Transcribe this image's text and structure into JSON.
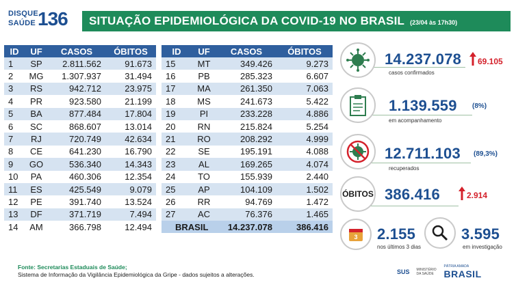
{
  "header": {
    "logo_line1": "DISQUE",
    "logo_line2": "SAÚDE",
    "logo_number": "136",
    "title": "SITUAÇÃO EPIDEMIOLÓGICA DA COVID-19 NO BRASIL",
    "date": "(23/04 às 17h30)"
  },
  "table": {
    "columns": [
      "ID",
      "UF",
      "CASOS",
      "ÓBITOS"
    ],
    "left_rows": [
      [
        "1",
        "SP",
        "2.811.562",
        "91.673"
      ],
      [
        "2",
        "MG",
        "1.307.937",
        "31.494"
      ],
      [
        "3",
        "RS",
        "942.712",
        "23.975"
      ],
      [
        "4",
        "PR",
        "923.580",
        "21.199"
      ],
      [
        "5",
        "BA",
        "877.484",
        "17.804"
      ],
      [
        "6",
        "SC",
        "868.607",
        "13.014"
      ],
      [
        "7",
        "RJ",
        "720.749",
        "42.634"
      ],
      [
        "8",
        "CE",
        "641.230",
        "16.790"
      ],
      [
        "9",
        "GO",
        "536.340",
        "14.343"
      ],
      [
        "10",
        "PA",
        "460.306",
        "12.354"
      ],
      [
        "11",
        "ES",
        "425.549",
        "9.079"
      ],
      [
        "12",
        "PE",
        "391.740",
        "13.524"
      ],
      [
        "13",
        "DF",
        "371.719",
        "7.494"
      ],
      [
        "14",
        "AM",
        "366.798",
        "12.494"
      ]
    ],
    "right_rows": [
      [
        "15",
        "MT",
        "349.426",
        "9.273"
      ],
      [
        "16",
        "PB",
        "285.323",
        "6.607"
      ],
      [
        "17",
        "MA",
        "261.350",
        "7.063"
      ],
      [
        "18",
        "MS",
        "241.673",
        "5.422"
      ],
      [
        "19",
        "PI",
        "233.228",
        "4.886"
      ],
      [
        "20",
        "RN",
        "215.824",
        "5.254"
      ],
      [
        "21",
        "RO",
        "208.292",
        "4.999"
      ],
      [
        "22",
        "SE",
        "195.191",
        "4.088"
      ],
      [
        "23",
        "AL",
        "169.265",
        "4.074"
      ],
      [
        "24",
        "TO",
        "155.939",
        "2.440"
      ],
      [
        "25",
        "AP",
        "104.109",
        "1.502"
      ],
      [
        "26",
        "RR",
        "94.769",
        "1.472"
      ],
      [
        "27",
        "AC",
        "76.376",
        "1.465"
      ]
    ],
    "total": {
      "label": "BRASIL",
      "casos": "14.237.078",
      "obitos": "386.416"
    }
  },
  "stats": {
    "confirmed": {
      "value": "14.237.078",
      "increase": "69.105",
      "label": "casos confirmados",
      "icon": "virus-icon"
    },
    "monitoring": {
      "value": "1.139.559",
      "pct": "(8%)",
      "label": "em acompanhamento",
      "icon": "clipboard-icon"
    },
    "recovered": {
      "value": "12.711.103",
      "pct": "(89,3%)",
      "label": "recuperados",
      "icon": "no-virus-icon"
    },
    "deaths": {
      "badge": "ÓBITOS",
      "value": "386.416",
      "increase": "2.914"
    },
    "recent_deaths": {
      "value": "2.155",
      "label": "nos últimos 3 dias",
      "icon": "calendar-icon",
      "icon_text": "3"
    },
    "investigation": {
      "value": "3.595",
      "label": "em investigação",
      "icon": "magnifier-icon"
    }
  },
  "footer": {
    "line1": "Fonte: Secretarias Estaduais de Saúde;",
    "line2": "Sistema de Informação da Vigilância Epidemiológica da Gripe - dados sujeitos a alterações."
  },
  "logos": {
    "sus": "SUS",
    "ministry": "MINISTÉRIO DA SAÚDE",
    "patria": "PÁTRIA AMADA",
    "brasil": "BRASIL"
  },
  "colors": {
    "title_green": "#1e8b5a",
    "header_blue": "#2f5f9e",
    "value_blue": "#1d4f91",
    "increase_red": "#d4212b",
    "row_stripe": "#d6e3f1"
  }
}
